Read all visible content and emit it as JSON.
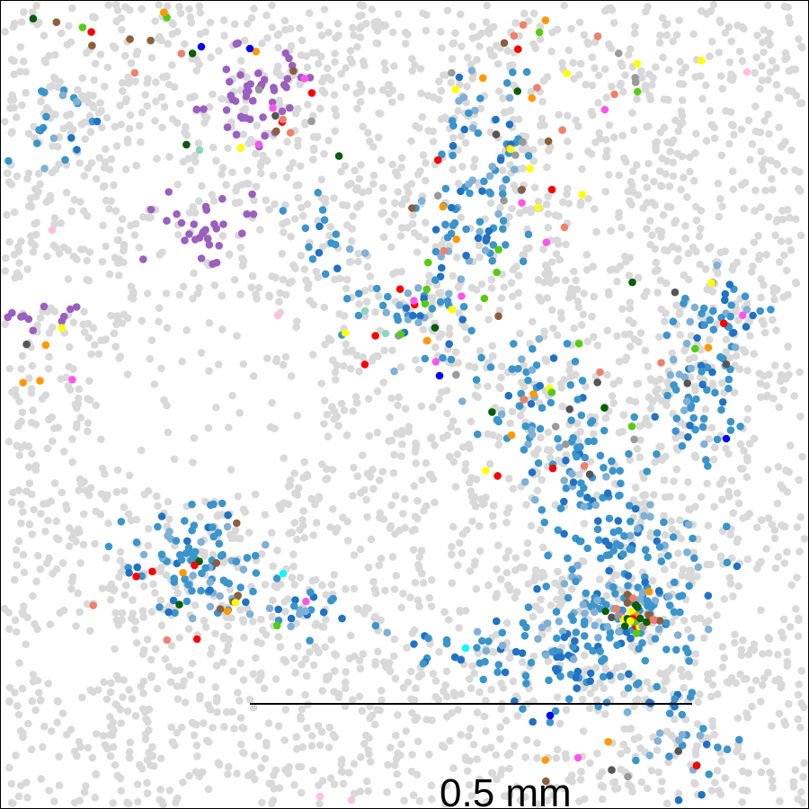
{
  "figure": {
    "description_type": "spatial cell-type scatter map (tissue section)",
    "background_color": "#ffffff",
    "border_color": "#000000",
    "scale_bar": {
      "label": "0.5 mm",
      "color": "#000000"
    },
    "cell_colors": {
      "background_cells": "#d9d9d9",
      "steel_blue": "#3a95cc",
      "light_steel_blue": "#7fb0d6",
      "dark_blue": "#1f72c4",
      "purple": "#9b5fc0",
      "brown": "#8c5e3c",
      "dark_gray": "#555555",
      "mid_gray": "#9a9a9a",
      "salmon": "#f07f6b",
      "red": "#ff0000",
      "orange": "#ff9900",
      "yellow": "#ffff00",
      "lime_green": "#55cc11",
      "dark_green": "#0a5d0a",
      "magenta": "#ff55ee",
      "cyan": "#00ffff",
      "teal": "#8fd4c0",
      "pure_blue": "#0000ff",
      "pink": "#ffc0dd"
    }
  }
}
